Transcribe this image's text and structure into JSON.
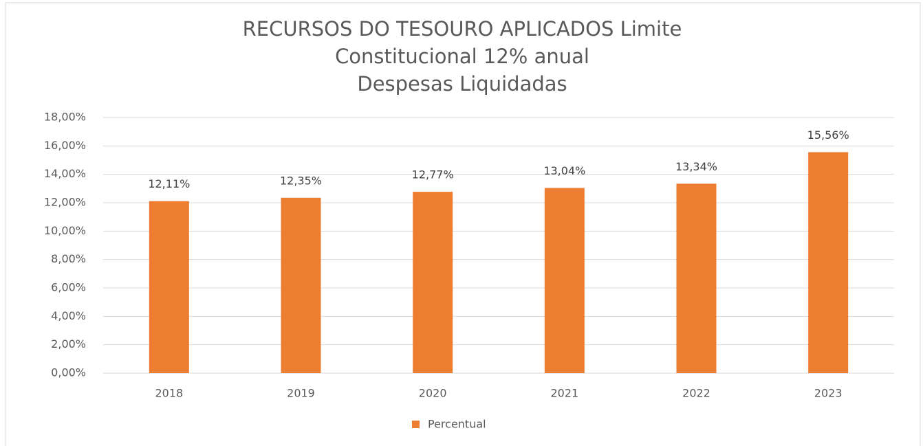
{
  "chart_data": {
    "type": "bar",
    "title": [
      "RECURSOS DO TESOURO APLICADOS Limite",
      "Constitucional 12% anual",
      "Despesas Liquidadas"
    ],
    "categories": [
      "2018",
      "2019",
      "2020",
      "2021",
      "2022",
      "2023"
    ],
    "series": [
      {
        "name": "Percentual",
        "color": "#ed7d31",
        "values": [
          12.11,
          12.35,
          12.77,
          13.04,
          13.34,
          15.56
        ],
        "value_labels": [
          "12,11%",
          "12,35%",
          "12,77%",
          "13,04%",
          "13,34%",
          "15,56%"
        ]
      }
    ],
    "ylim": [
      0,
      18
    ],
    "yticks": [
      {
        "value": 0,
        "label": "0,00%"
      },
      {
        "value": 2,
        "label": "2,00%"
      },
      {
        "value": 4,
        "label": "4,00%"
      },
      {
        "value": 6,
        "label": "6,00%"
      },
      {
        "value": 8,
        "label": "8,00%"
      },
      {
        "value": 10,
        "label": "10,00%"
      },
      {
        "value": 12,
        "label": "12,00%"
      },
      {
        "value": 14,
        "label": "14,00%"
      },
      {
        "value": 16,
        "label": "16,00%"
      },
      {
        "value": 18,
        "label": "18,00%"
      }
    ],
    "grid": true,
    "legend": "bottom"
  }
}
